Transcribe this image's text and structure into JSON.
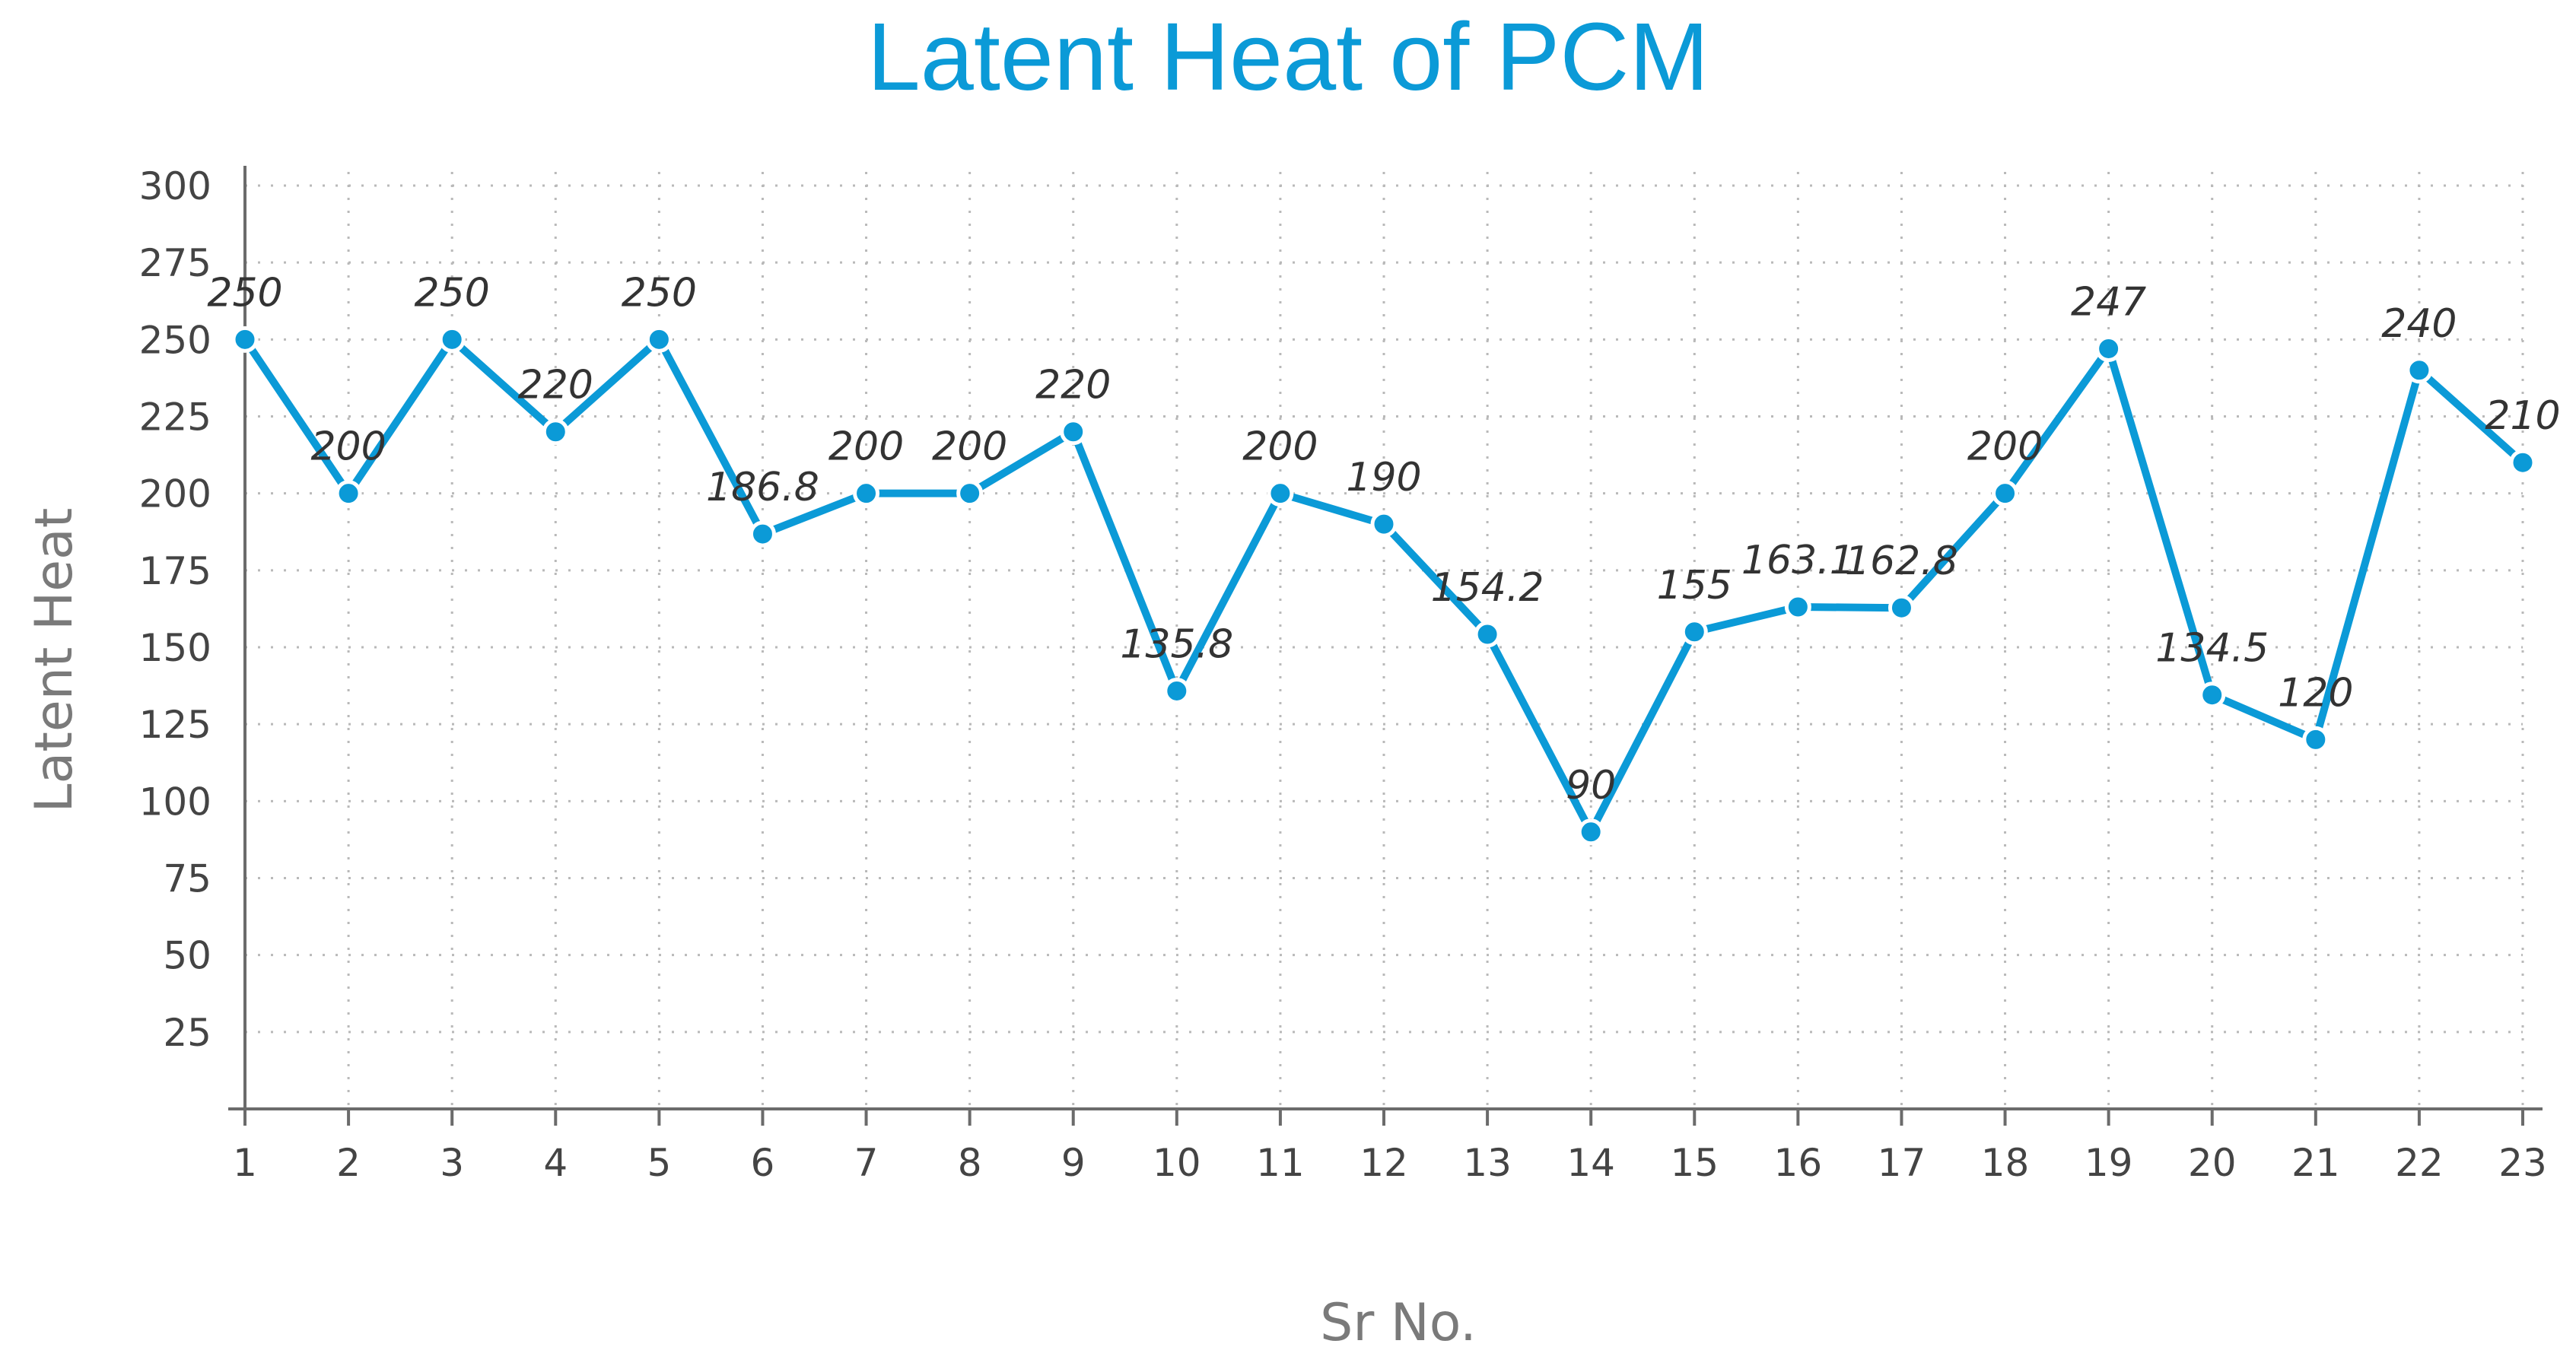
{
  "chart_data": {
    "type": "line",
    "title": "Latent Heat of PCM",
    "xlabel": "Sr No.",
    "ylabel": "Latent Heat",
    "categories": [
      "1",
      "2",
      "3",
      "4",
      "5",
      "6",
      "7",
      "8",
      "9",
      "10",
      "11",
      "12",
      "13",
      "14",
      "15",
      "16",
      "17",
      "18",
      "19",
      "20",
      "21",
      "22",
      "23"
    ],
    "series": [
      {
        "values": [
          250,
          200,
          250,
          220,
          250,
          186.8,
          200,
          200,
          220,
          135.8,
          200,
          190,
          154.2,
          90,
          155,
          163.1,
          162.8,
          200,
          247,
          134.5,
          120,
          240,
          210
        ],
        "data_labels": [
          "250",
          "200",
          "250",
          "220",
          "250",
          "186.8",
          "200",
          "200",
          "220",
          "135.8",
          "200",
          "190",
          "154.2",
          "90",
          "155",
          "163.1",
          "162.8",
          "200",
          "247",
          "134.5",
          "120",
          "240",
          "210"
        ]
      }
    ],
    "ylim": [
      0,
      300
    ],
    "y_ticks": [
      "25",
      "50",
      "75",
      "100",
      "125",
      "150",
      "175",
      "200",
      "225",
      "250",
      "275",
      "300"
    ],
    "grid": true,
    "legend": "none",
    "colors": {
      "series": "#0b9ad7",
      "title": "#0b9ad7",
      "axis_title": "#7a7a7a"
    }
  }
}
